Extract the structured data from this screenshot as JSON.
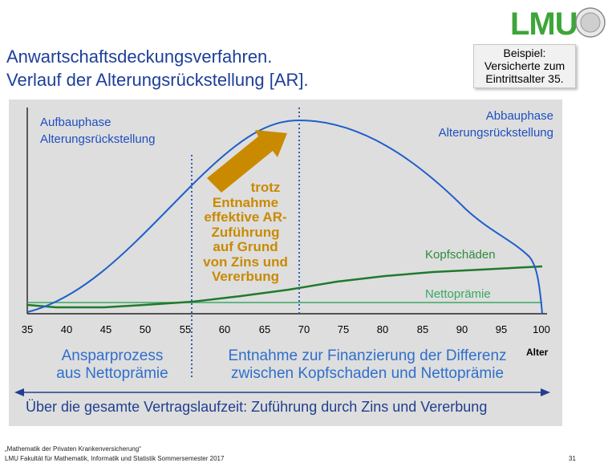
{
  "title": {
    "line1": "Anwartschaftsdeckungsverfahren.",
    "line2": "Verlauf der Alterungsrückstellung [AR]."
  },
  "logo": {
    "text": "LMU"
  },
  "example_box": {
    "line1": "Beispiel:",
    "line2": "Versicherte zum",
    "line3": "Eintrittsalter 35."
  },
  "chart": {
    "left_label_1": "Aufbauphase",
    "left_label_2": "Alterungsrückstellung",
    "right_label_1": "Abbauphase",
    "right_label_2": "Alterungsrückstellung",
    "kopfschaeden_label": "Kopfschäden",
    "nettopraemie_label": "Nettoprämie",
    "orange_lines": [
      "trotz",
      "Entnahme",
      "effektive AR-",
      "Zuführung",
      "auf Grund",
      "von Zins und",
      "Vererbung"
    ],
    "x_axis_label": "Alter",
    "ticks": [
      "35",
      "40",
      "45",
      "50",
      "55",
      "60",
      "65",
      "70",
      "75",
      "80",
      "85",
      "90",
      "95",
      "100"
    ],
    "phase_left_1": "Ansparprozess",
    "phase_left_2": "aus Nettoprämie",
    "phase_right_1": "Entnahme zur Finanzierung der Differenz",
    "phase_right_2": "zwischen Kopfschaden und Nettoprämie",
    "bottom_text": "Über die gesamte Vertragslaufzeit: Zuführung durch Zins und Vererbung",
    "colors": {
      "ar_curve": "#1f5fc9",
      "kopfschaden": "#1f7a2e",
      "nettopraemie": "#3aa765",
      "arrow": "#c98a00",
      "divider": "#3060b0"
    }
  },
  "footer": {
    "line1": "„Mathematik der Privaten Krankenversicherung“",
    "line2": "LMU Fakultät für Mathematik, Informatik und Statistik Sommersemester 2017",
    "page": "31"
  }
}
